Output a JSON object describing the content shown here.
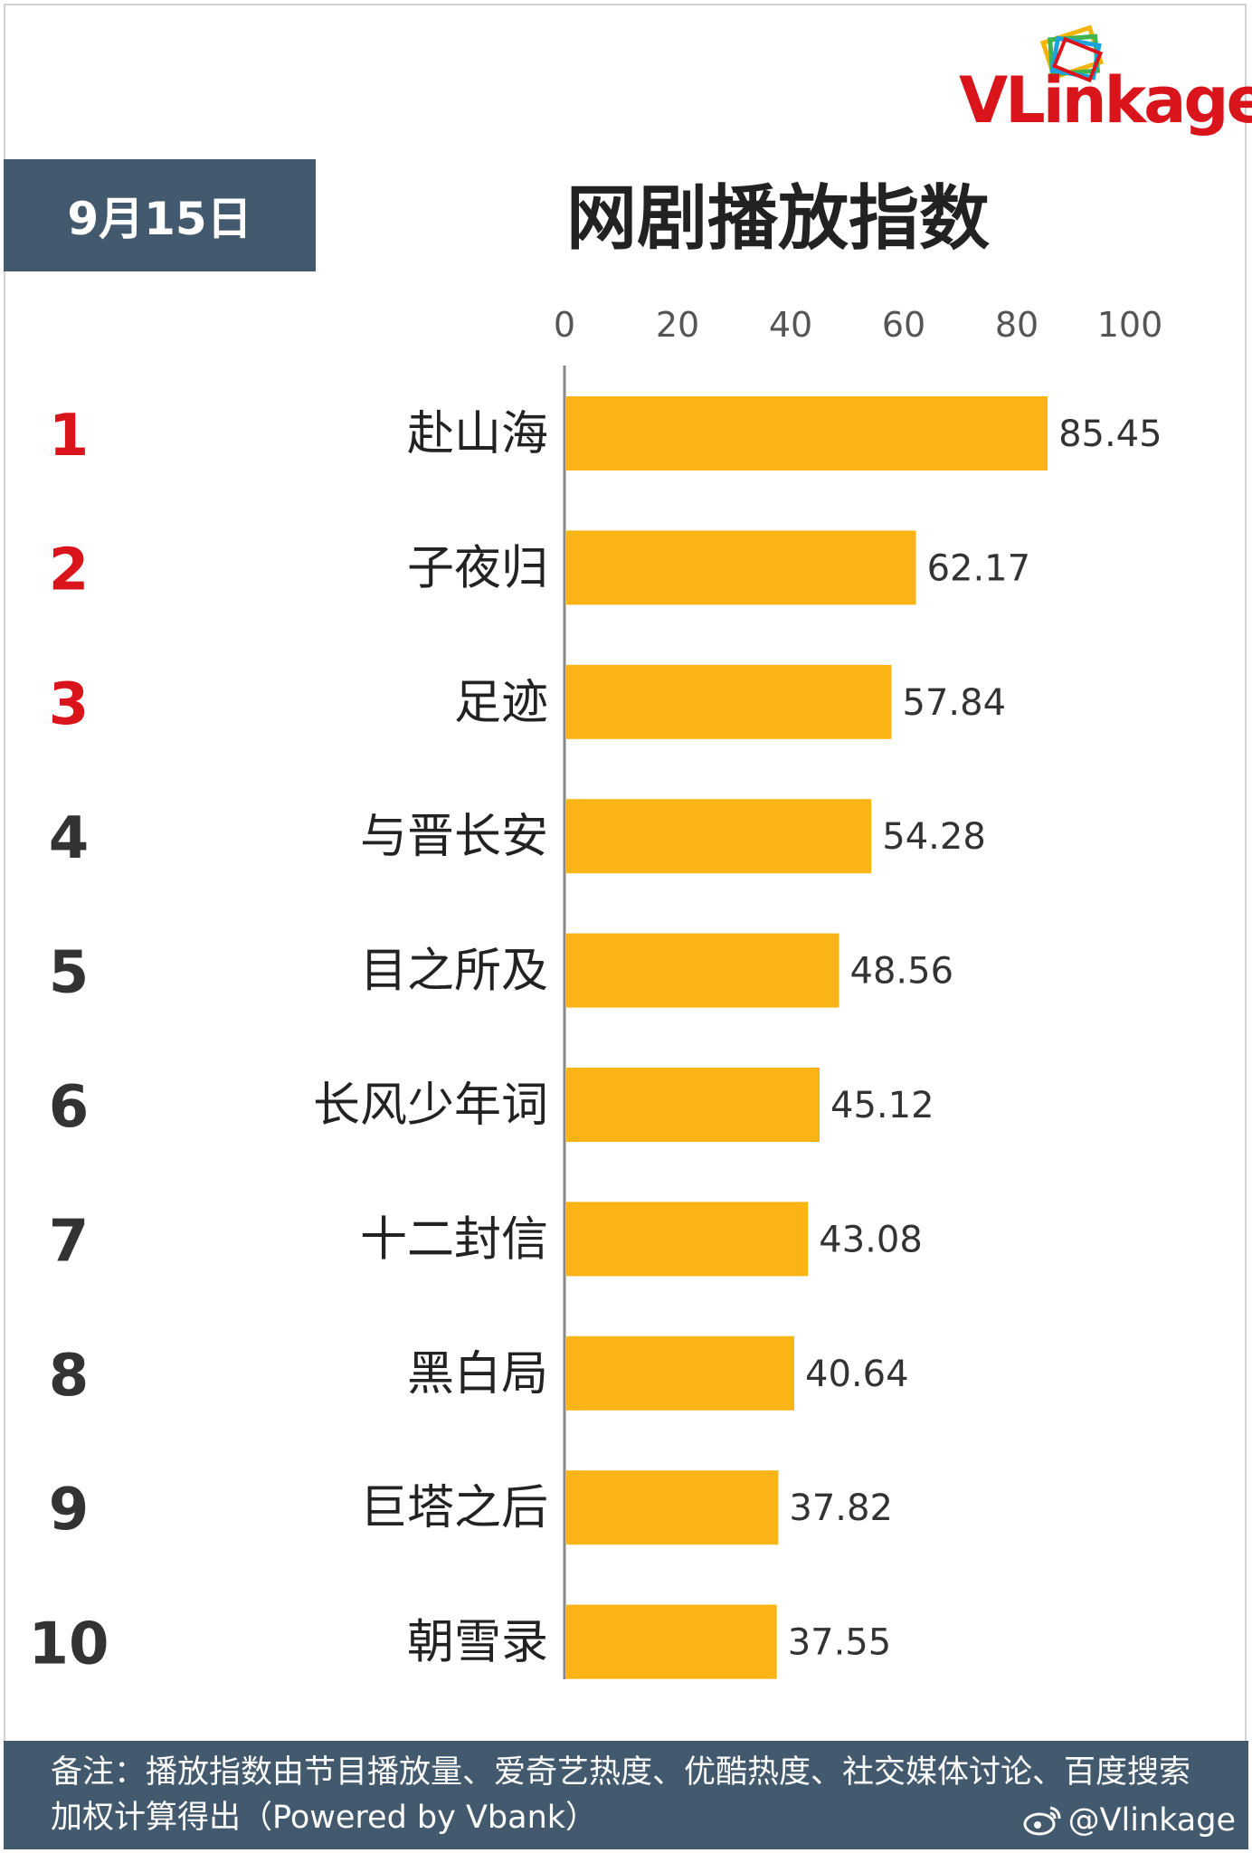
{
  "brand": {
    "name": "VLinkage"
  },
  "header": {
    "date": "9月15日"
  },
  "chart_data": {
    "type": "bar",
    "orientation": "horizontal",
    "title": "网剧播放指数",
    "xlabel": "",
    "ylabel": "",
    "xlim": [
      0,
      100
    ],
    "x_ticks": [
      "0",
      "20",
      "40",
      "60",
      "80",
      "100"
    ],
    "grid": false,
    "legend": "none",
    "ranks": [
      "1",
      "2",
      "3",
      "4",
      "5",
      "6",
      "7",
      "8",
      "9",
      "10"
    ],
    "categories": [
      "赴山海",
      "子夜归",
      "足迹",
      "与晋长安",
      "目之所及",
      "长风少年词",
      "十二封信",
      "黑白局",
      "巨塔之后",
      "朝雪录"
    ],
    "values": [
      85.45,
      62.17,
      57.84,
      54.28,
      48.56,
      45.12,
      43.08,
      40.64,
      37.82,
      37.55
    ],
    "value_labels": [
      "85.45",
      "62.17",
      "57.84",
      "54.28",
      "48.56",
      "45.12",
      "43.08",
      "40.64",
      "37.82",
      "37.55"
    ],
    "colors": {
      "bar": "#fbb416",
      "top_rank": "#d9141b",
      "rank": "#333333",
      "axis": "#888888"
    }
  },
  "footer": {
    "note": "备注：播放指数由节目播放量、爱奇艺热度、优酷热度、社交媒体讨论、百度搜索加权计算得出（Powered by Vbank）",
    "handle": "@Vlinkage"
  }
}
